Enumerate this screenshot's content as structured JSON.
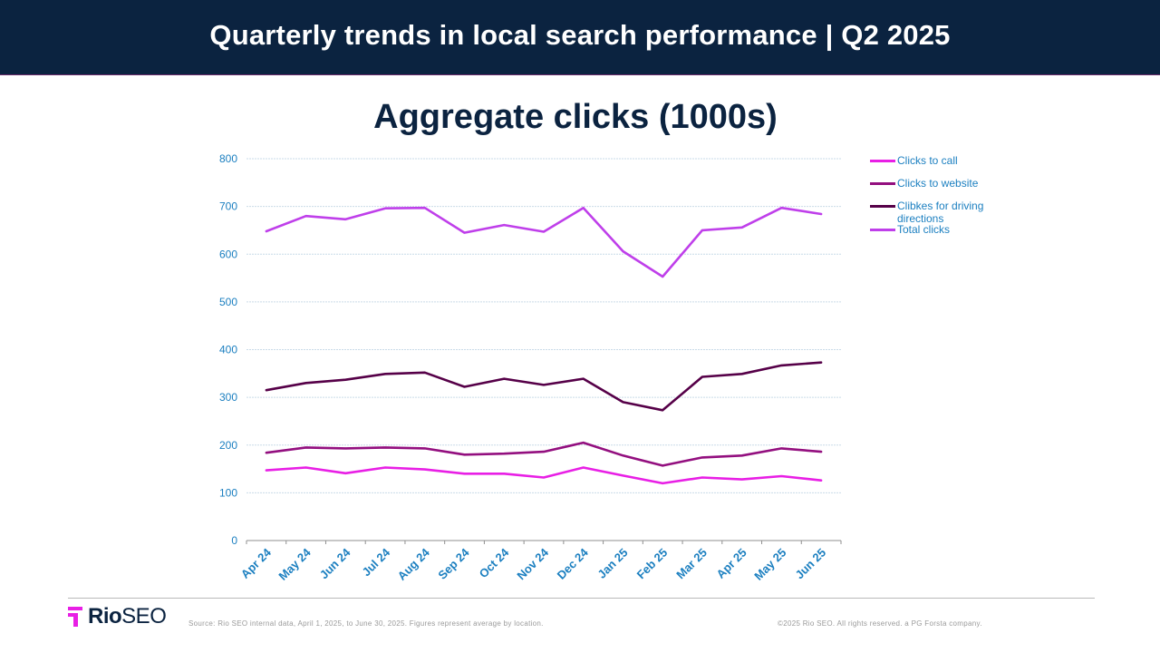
{
  "header": {
    "title": "Quarterly trends in local search performance  |  Q2 2025"
  },
  "chart_data": {
    "type": "line",
    "title": "Aggregate clicks (1000s)",
    "xlabel": "",
    "ylabel": "",
    "ylim": [
      0,
      800
    ],
    "yticks": [
      0,
      100,
      200,
      300,
      400,
      500,
      600,
      700,
      800
    ],
    "grid": true,
    "legend_position": "right",
    "categories": [
      "Apr 24",
      "May 24",
      "Jun 24",
      "Jul 24",
      "Aug 24",
      "Sep 24",
      "Oct 24",
      "Nov 24",
      "Dec 24",
      "Jan 25",
      "Feb 25",
      "Mar 25",
      "Apr 25",
      "May 25",
      "Jun 25"
    ],
    "series": [
      {
        "name": "Clicks to call",
        "color": "#e81fe5",
        "values": [
          147,
          153,
          141,
          153,
          149,
          140,
          140,
          132,
          153,
          136,
          120,
          132,
          128,
          135,
          126
        ]
      },
      {
        "name": "Clicks to website",
        "color": "#930f7f",
        "values": [
          184,
          195,
          193,
          195,
          193,
          180,
          182,
          186,
          205,
          178,
          157,
          174,
          178,
          193,
          186
        ]
      },
      {
        "name": "Clibkes for driving directions",
        "color": "#560048",
        "values": [
          315,
          330,
          337,
          349,
          352,
          322,
          339,
          326,
          339,
          290,
          273,
          343,
          349,
          367,
          373
        ]
      },
      {
        "name": "Total clicks",
        "color": "#bf3fea",
        "values": [
          648,
          680,
          673,
          696,
          697,
          645,
          661,
          647,
          697,
          606,
          553,
          650,
          656,
          697,
          684
        ]
      }
    ]
  },
  "footer": {
    "logo_bold": "Rio",
    "logo_rest": "SEO",
    "source": "Source: Rio SEO internal data, April 1, 2025, to June 30, 2025. Figures represent average by location.",
    "copyright": "©2025 Rio SEO. All rights reserved. a PG Forsta company."
  },
  "colors": {
    "header_bg": "#0b2340",
    "axis_label": "#1b7fc0",
    "logo_accent": "#e81fe5"
  }
}
